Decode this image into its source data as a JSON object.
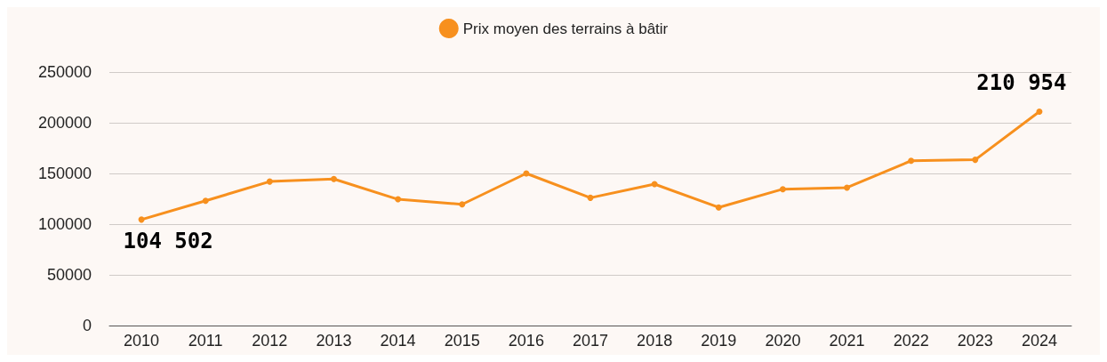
{
  "chart_data": {
    "type": "line",
    "categories": [
      "2010",
      "2011",
      "2012",
      "2013",
      "2014",
      "2015",
      "2016",
      "2017",
      "2018",
      "2019",
      "2020",
      "2021",
      "2022",
      "2023",
      "2024"
    ],
    "series": [
      {
        "name": "Prix moyen des terrains à bâtir",
        "color": "#f7901e",
        "values": [
          104502,
          123000,
          142000,
          144500,
          124500,
          119500,
          150000,
          126000,
          139500,
          116500,
          134500,
          136000,
          162500,
          163500,
          210954
        ],
        "value_labels": [
          "104 502",
          null,
          null,
          null,
          null,
          null,
          null,
          null,
          null,
          null,
          null,
          null,
          null,
          null,
          "210 954"
        ]
      }
    ],
    "ylim": [
      0,
      250000
    ],
    "yticks": [
      0,
      50000,
      100000,
      150000,
      200000,
      250000
    ],
    "grid": "y",
    "legend": "top",
    "marker": "circle",
    "line_style": "solid"
  }
}
